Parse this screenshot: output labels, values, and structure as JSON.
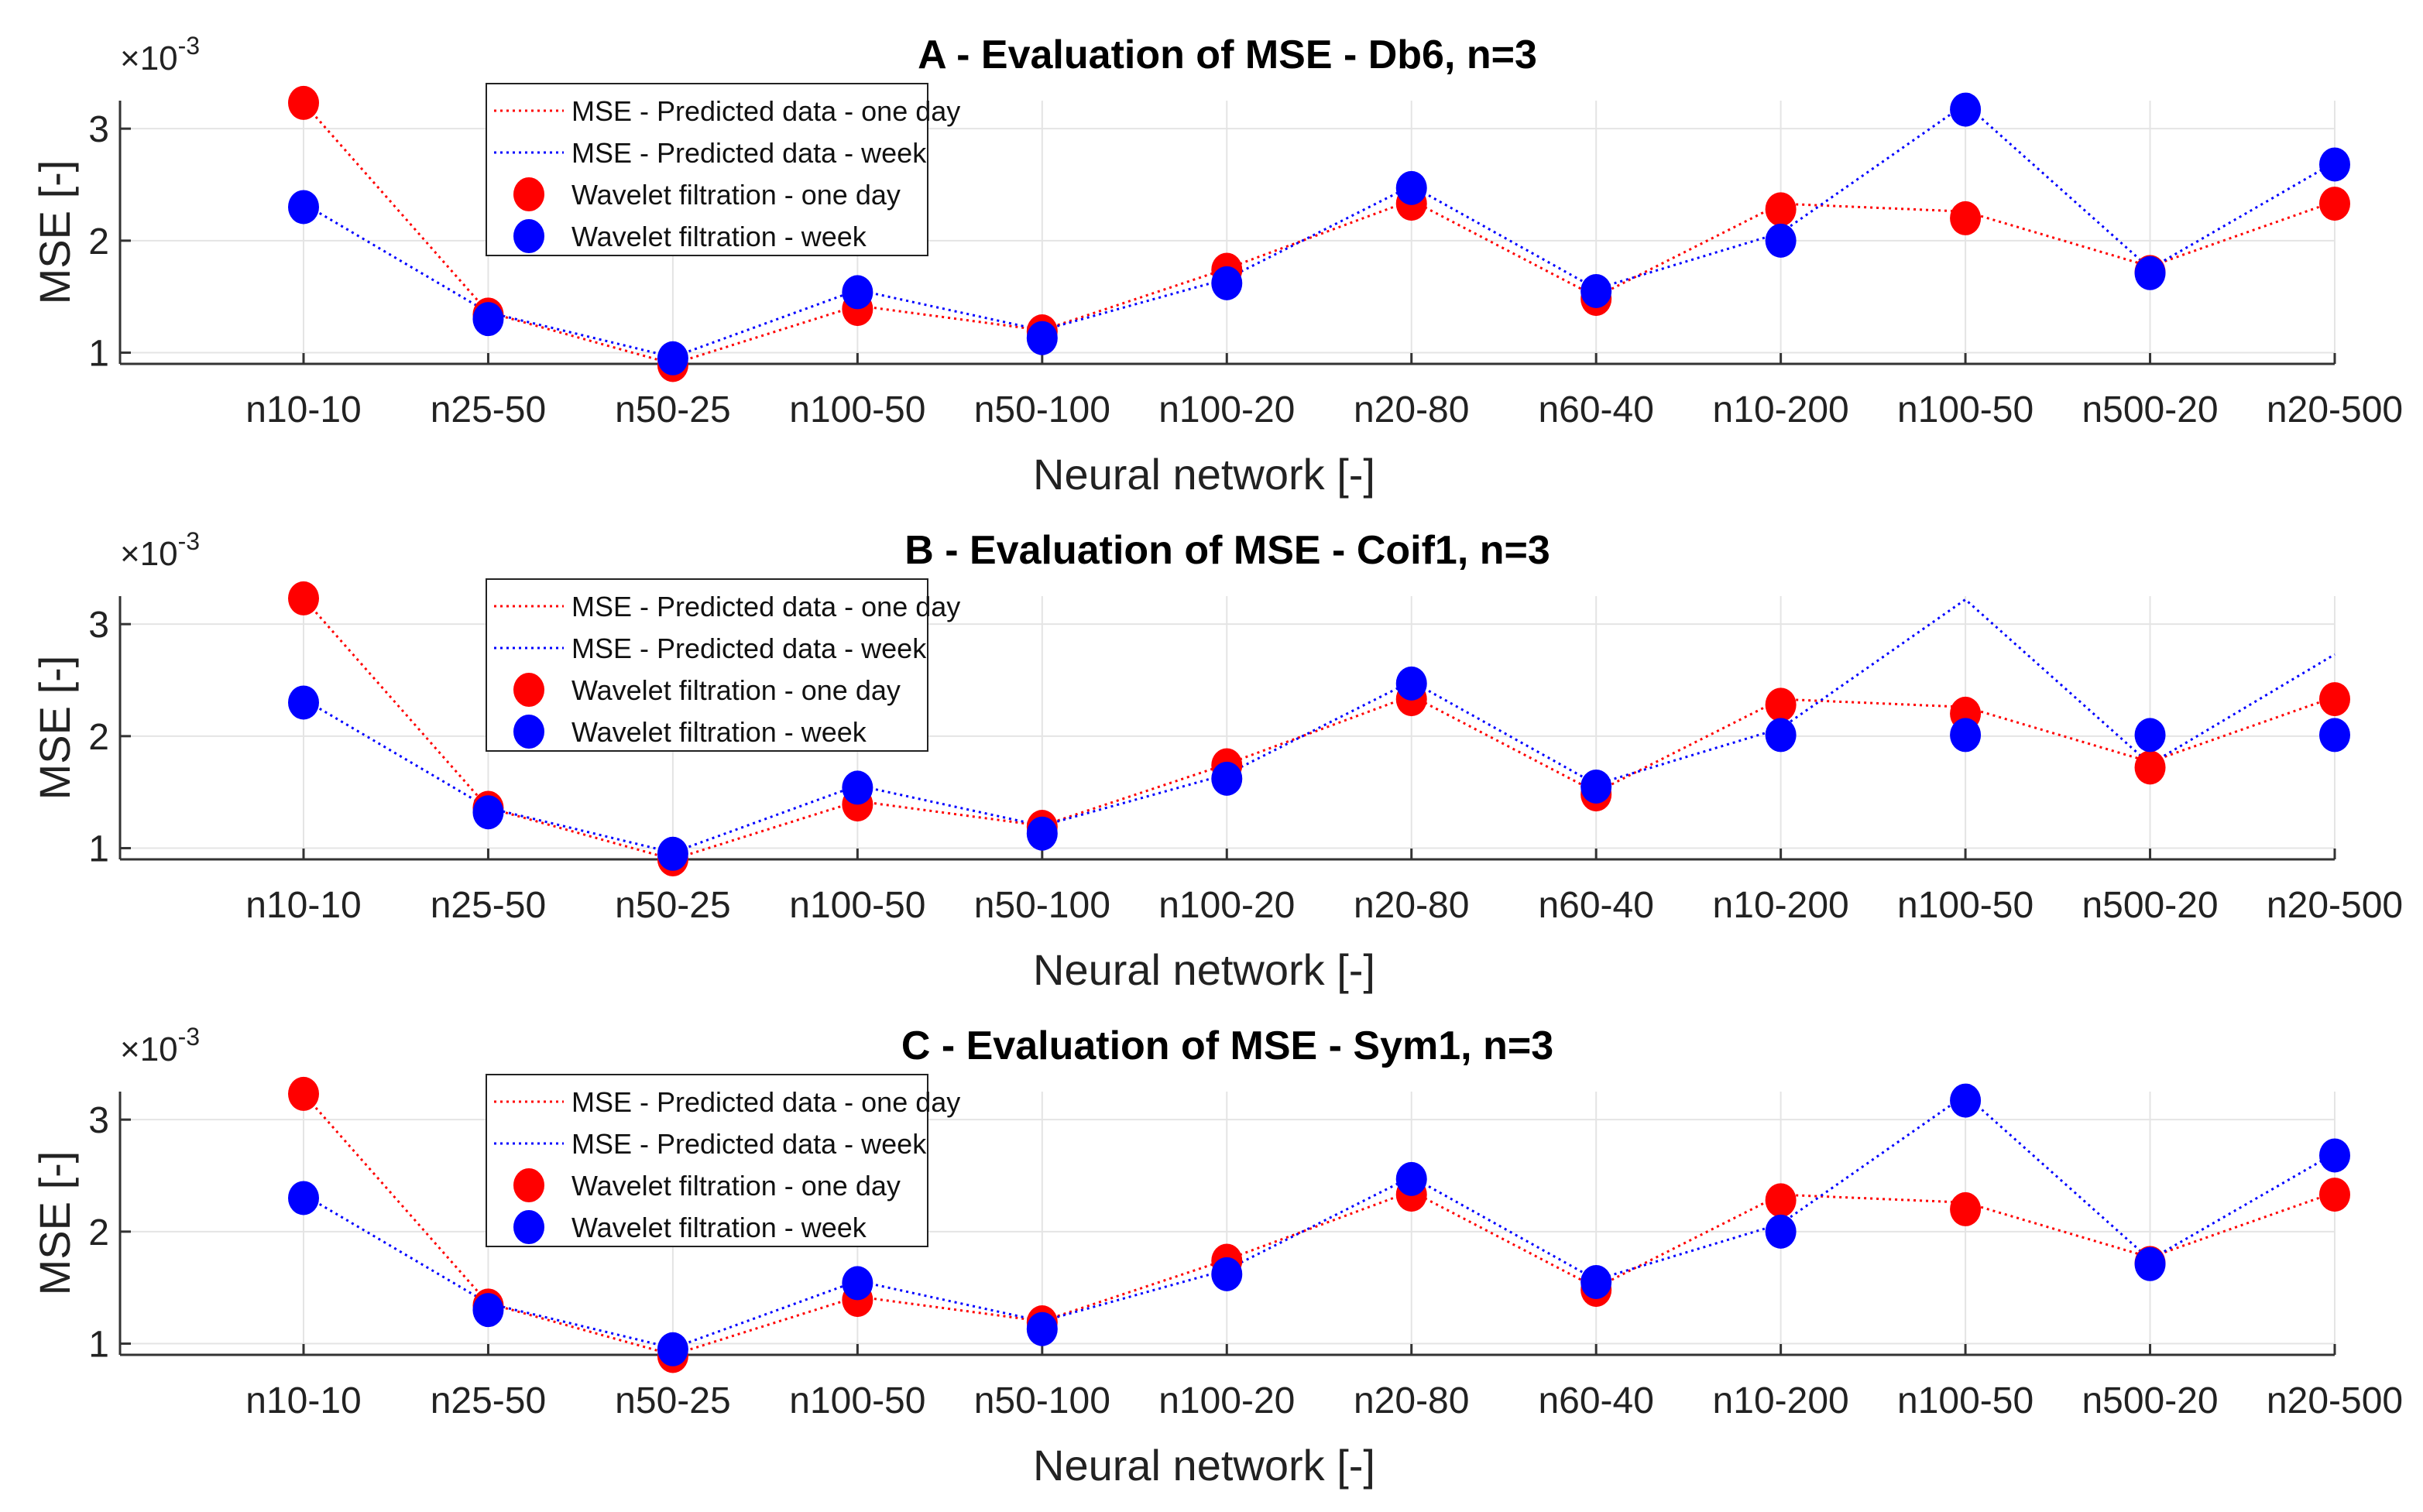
{
  "colors": {
    "series1": "#ff0000",
    "series2": "#0000ff",
    "grid": "#e4e4e4",
    "axis": "#333333"
  },
  "chart_data": [
    {
      "type": "line",
      "title": "A - Evaluation of MSE - Db6, n=3",
      "xlabel": "Neural network [-]",
      "ylabel": "MSE [-]",
      "exponent_base": "×10",
      "exponent_power": "-3",
      "ylim": [
        0.9,
        3.25
      ],
      "yticks": [
        "1",
        "2",
        "3"
      ],
      "yticks_values": [
        1,
        2,
        3
      ],
      "categories": [
        "n10-10",
        "n25-50",
        "n50-25",
        "n100-50",
        "n50-100",
        "n100-20",
        "n20-80",
        "n60-40",
        "n10-200",
        "n100-50",
        "n500-20",
        "n20-500"
      ],
      "series": [
        {
          "name": "MSE - Predicted data - one day",
          "kind": "line",
          "color": "#ff0000",
          "values": [
            3.23,
            1.36,
            0.9,
            1.42,
            1.2,
            1.75,
            2.36,
            1.5,
            2.33,
            2.26,
            1.77,
            2.35
          ]
        },
        {
          "name": "MSE - Predicted data - week",
          "kind": "line",
          "color": "#0000ff",
          "values": [
            2.33,
            1.36,
            0.96,
            1.56,
            1.2,
            1.66,
            2.49,
            1.57,
            2.07,
            3.22,
            1.75,
            2.7
          ]
        },
        {
          "name": "Wavelet filtration - one day",
          "kind": "marker",
          "color": "#ff0000",
          "values": [
            3.23,
            1.34,
            0.89,
            1.39,
            1.19,
            1.74,
            2.33,
            1.48,
            2.28,
            2.2,
            1.72,
            2.33
          ]
        },
        {
          "name": "Wavelet filtration - week",
          "kind": "marker",
          "color": "#0000ff",
          "values": [
            2.3,
            1.3,
            0.95,
            1.54,
            1.13,
            1.62,
            2.47,
            1.55,
            2.0,
            3.17,
            1.71,
            2.68
          ]
        }
      ]
    },
    {
      "type": "line",
      "title": "B - Evaluation of MSE - Coif1, n=3",
      "xlabel": "Neural network [-]",
      "ylabel": "MSE [-]",
      "exponent_base": "×10",
      "exponent_power": "-3",
      "ylim": [
        0.9,
        3.25
      ],
      "yticks": [
        "1",
        "2",
        "3"
      ],
      "yticks_values": [
        1,
        2,
        3
      ],
      "categories": [
        "n10-10",
        "n25-50",
        "n50-25",
        "n100-50",
        "n50-100",
        "n100-20",
        "n20-80",
        "n60-40",
        "n10-200",
        "n100-50",
        "n500-20",
        "n20-500"
      ],
      "series": [
        {
          "name": "MSE - Predicted data - one day",
          "kind": "line",
          "color": "#ff0000",
          "values": [
            3.23,
            1.36,
            0.9,
            1.42,
            1.2,
            1.75,
            2.36,
            1.5,
            2.33,
            2.26,
            1.77,
            2.35
          ]
        },
        {
          "name": "MSE - Predicted data - week",
          "kind": "line",
          "color": "#0000ff",
          "values": [
            2.33,
            1.36,
            0.96,
            1.56,
            1.2,
            1.66,
            2.49,
            1.57,
            2.07,
            3.22,
            1.75,
            2.73
          ]
        },
        {
          "name": "Wavelet filtration - one day",
          "kind": "marker",
          "color": "#ff0000",
          "values": [
            3.23,
            1.36,
            0.9,
            1.39,
            1.19,
            1.74,
            2.33,
            1.48,
            2.28,
            2.2,
            1.72,
            2.33
          ]
        },
        {
          "name": "Wavelet filtration - week",
          "kind": "marker",
          "color": "#0000ff",
          "values": [
            2.3,
            1.32,
            0.95,
            1.54,
            1.13,
            1.62,
            2.47,
            1.55,
            2.01,
            2.01,
            2.01,
            2.01
          ]
        }
      ]
    },
    {
      "type": "line",
      "title": "C - Evaluation of MSE - Sym1, n=3",
      "xlabel": "Neural network [-]",
      "ylabel": "MSE [-]",
      "exponent_base": "×10",
      "exponent_power": "-3",
      "ylim": [
        0.9,
        3.25
      ],
      "yticks": [
        "1",
        "2",
        "3"
      ],
      "yticks_values": [
        1,
        2,
        3
      ],
      "categories": [
        "n10-10",
        "n25-50",
        "n50-25",
        "n100-50",
        "n50-100",
        "n100-20",
        "n20-80",
        "n60-40",
        "n10-200",
        "n100-50",
        "n500-20",
        "n20-500"
      ],
      "series": [
        {
          "name": "MSE - Predicted data - one day",
          "kind": "line",
          "color": "#ff0000",
          "values": [
            3.23,
            1.36,
            0.9,
            1.42,
            1.2,
            1.75,
            2.36,
            1.5,
            2.33,
            2.26,
            1.77,
            2.35
          ]
        },
        {
          "name": "MSE - Predicted data - week",
          "kind": "line",
          "color": "#0000ff",
          "values": [
            2.33,
            1.36,
            0.96,
            1.56,
            1.2,
            1.66,
            2.49,
            1.57,
            2.07,
            3.22,
            1.75,
            2.7
          ]
        },
        {
          "name": "Wavelet filtration - one day",
          "kind": "marker",
          "color": "#ff0000",
          "values": [
            3.23,
            1.34,
            0.89,
            1.39,
            1.19,
            1.74,
            2.33,
            1.48,
            2.28,
            2.2,
            1.72,
            2.33
          ]
        },
        {
          "name": "Wavelet filtration - week",
          "kind": "marker",
          "color": "#0000ff",
          "values": [
            2.3,
            1.3,
            0.95,
            1.54,
            1.13,
            1.62,
            2.47,
            1.55,
            2.0,
            3.17,
            1.71,
            2.68
          ]
        }
      ]
    }
  ]
}
